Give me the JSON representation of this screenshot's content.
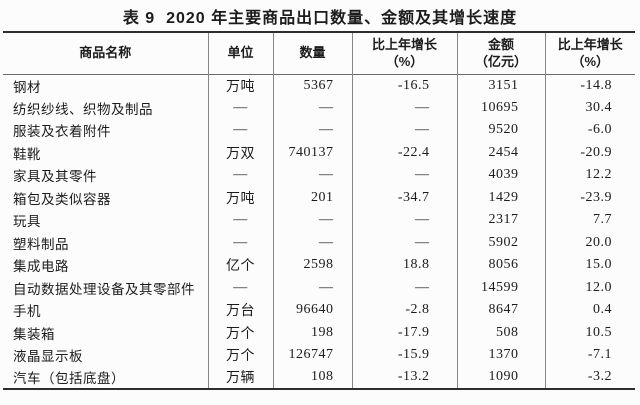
{
  "title": "表 9  2020 年主要商品出口数量、金额及其增长速度",
  "colors": {
    "background": "#fcfcfc",
    "text": "#1c1c1c",
    "border_heavy": "#2e2e2e",
    "border_light": "#858585"
  },
  "table": {
    "headers": [
      {
        "line1": "商品名称"
      },
      {
        "line1": "单位"
      },
      {
        "line1": "数量"
      },
      {
        "line1": "比上年增长",
        "line2": "（%）"
      },
      {
        "line1": "金额",
        "line2": "（亿元）"
      },
      {
        "line1": "比上年增长",
        "line2": "（%）"
      }
    ],
    "rows": [
      [
        "钢材",
        "万吨",
        "5367",
        "-16.5",
        "3151",
        "-14.8"
      ],
      [
        "纺织纱线、织物及制品",
        "—",
        "—",
        "—",
        "10695",
        "30.4"
      ],
      [
        "服装及衣着附件",
        "—",
        "—",
        "—",
        "9520",
        "-6.0"
      ],
      [
        "鞋靴",
        "万双",
        "740137",
        "-22.4",
        "2454",
        "-20.9"
      ],
      [
        "家具及其零件",
        "—",
        "—",
        "—",
        "4039",
        "12.2"
      ],
      [
        "箱包及类似容器",
        "万吨",
        "201",
        "-34.7",
        "1429",
        "-23.9"
      ],
      [
        "玩具",
        "—",
        "—",
        "—",
        "2317",
        "7.7"
      ],
      [
        "塑料制品",
        "—",
        "—",
        "—",
        "5902",
        "20.0"
      ],
      [
        "集成电路",
        "亿个",
        "2598",
        "18.8",
        "8056",
        "15.0"
      ],
      [
        "自动数据处理设备及其零部件",
        "—",
        "—",
        "—",
        "14599",
        "12.0"
      ],
      [
        "手机",
        "万台",
        "96640",
        "-2.8",
        "8647",
        "0.4"
      ],
      [
        "集装箱",
        "万个",
        "198",
        "-17.9",
        "508",
        "10.5"
      ],
      [
        "液晶显示板",
        "万个",
        "126747",
        "-15.9",
        "1370",
        "-7.1"
      ],
      [
        "汽车（包括底盘）",
        "万辆",
        "108",
        "-13.2",
        "1090",
        "-3.2"
      ]
    ]
  }
}
